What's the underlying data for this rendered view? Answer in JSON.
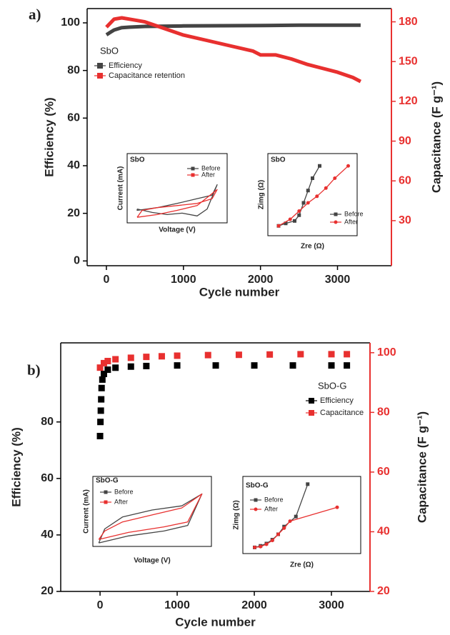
{
  "chart_data": [
    {
      "type": "line",
      "panel_label": "a)",
      "title": "SbO",
      "xlabel": "Cycle number",
      "ylabel": "Efficiency (%)",
      "y2label": "Capacitance (F g⁻¹)",
      "xlim": [
        -250,
        3700
      ],
      "ylim": [
        -2,
        106
      ],
      "y2lim": [
        -4,
        190
      ],
      "xticks": [
        0,
        1000,
        2000,
        3000
      ],
      "yticks": [
        0,
        20,
        40,
        60,
        80,
        100
      ],
      "y2ticks": [
        30,
        60,
        90,
        120,
        150,
        180
      ],
      "series": [
        {
          "name": "Efficiency",
          "color": "#444444",
          "x": [
            0,
            50,
            100,
            200,
            300,
            500,
            1000,
            1500,
            2000,
            2500,
            3000,
            3300
          ],
          "values": [
            95,
            96,
            97,
            98,
            98.2,
            98.5,
            98.7,
            98.8,
            98.9,
            99,
            99,
            99
          ]
        },
        {
          "name": "Capacitance retention",
          "color": "#e8302f",
          "axis": "y2",
          "x": [
            0,
            100,
            200,
            300,
            500,
            700,
            1000,
            1300,
            1600,
            1900,
            2000,
            2200,
            2400,
            2600,
            2800,
            3000,
            3200,
            3300
          ],
          "values": [
            176,
            182,
            183,
            182,
            180,
            176,
            170,
            166,
            162,
            158,
            155,
            155,
            152,
            148,
            145,
            142,
            138,
            135
          ]
        }
      ]
    },
    {
      "type": "line",
      "title": "SbO",
      "xlabel": "Voltage (V)",
      "ylabel": "Current (mA)",
      "xlim": [
        0,
        100
      ],
      "ylim": [
        0,
        100
      ],
      "series": [
        {
          "name": "Before",
          "color": "#444444",
          "x": [
            10,
            25,
            40,
            55,
            70,
            80,
            90,
            85,
            70,
            50,
            30,
            10,
            10
          ],
          "values": [
            20,
            15,
            12,
            14,
            10,
            20,
            55,
            40,
            35,
            28,
            22,
            18,
            20
          ]
        },
        {
          "name": "After",
          "color": "#e8302f",
          "x": [
            10,
            30,
            50,
            70,
            90,
            85,
            70,
            50,
            30,
            15,
            10
          ],
          "values": [
            8,
            12,
            18,
            25,
            48,
            35,
            28,
            25,
            22,
            18,
            8
          ]
        }
      ]
    },
    {
      "type": "line",
      "title": "SbO",
      "xlabel": "Zre (Ω)",
      "ylabel": "Zimg (Ω)",
      "xlim": [
        0,
        100
      ],
      "ylim": [
        0,
        100
      ],
      "series": [
        {
          "name": "Before",
          "color": "#444444",
          "marker": "square",
          "x": [
            12,
            20,
            30,
            35,
            40,
            45,
            50,
            58
          ],
          "values": [
            12,
            15,
            18,
            25,
            40,
            55,
            70,
            85
          ]
        },
        {
          "name": "After",
          "color": "#e8302f",
          "marker": "circle",
          "x": [
            12,
            25,
            35,
            45,
            55,
            65,
            75,
            90
          ],
          "values": [
            12,
            20,
            30,
            40,
            48,
            58,
            70,
            85
          ]
        }
      ]
    },
    {
      "type": "scatter",
      "panel_label": "b)",
      "title": "SbO-G",
      "xlabel": "Cycle number",
      "ylabel": "Efficiency (%)",
      "y2label": "Capacitance (F g⁻¹)",
      "xlim": [
        -510,
        3500
      ],
      "ylim": [
        20,
        108
      ],
      "y2lim": [
        20,
        103.3
      ],
      "xticks": [
        0,
        1000,
        2000,
        3000
      ],
      "yticks": [
        20,
        40,
        60,
        80
      ],
      "y2ticks": [
        20,
        40,
        60,
        80,
        100
      ],
      "series": [
        {
          "name": "Efficiency",
          "color": "#000000",
          "x": [
            0,
            5,
            10,
            15,
            20,
            30,
            50,
            100,
            200,
            400,
            600,
            1000,
            1500,
            2000,
            2500,
            3000,
            3200
          ],
          "values": [
            75,
            80,
            84,
            88,
            92,
            95,
            97,
            98.5,
            99.2,
            99.6,
            99.8,
            100,
            100,
            100,
            100,
            100,
            100
          ]
        },
        {
          "name": "Capacitance",
          "color": "#e8302f",
          "axis": "y2",
          "x": [
            0,
            50,
            100,
            200,
            400,
            600,
            800,
            1000,
            1400,
            1800,
            2200,
            2600,
            3000,
            3200
          ],
          "values": [
            95,
            96.5,
            97.2,
            97.8,
            98.3,
            98.6,
            98.8,
            99,
            99.2,
            99.3,
            99.4,
            99.5,
            99.5,
            99.5
          ]
        }
      ]
    },
    {
      "type": "line",
      "title": "SbO-G",
      "xlabel": "Voltage (V)",
      "ylabel": "Current (mA)",
      "xlim": [
        0,
        100
      ],
      "ylim": [
        0,
        100
      ],
      "series": [
        {
          "name": "Before",
          "color": "#444444",
          "x": [
            5,
            30,
            60,
            80,
            92,
            75,
            50,
            25,
            10,
            5
          ],
          "values": [
            5,
            15,
            22,
            30,
            75,
            58,
            52,
            42,
            25,
            5
          ]
        },
        {
          "name": "After",
          "color": "#e8302f",
          "x": [
            5,
            30,
            60,
            80,
            92,
            75,
            50,
            25,
            10,
            5
          ],
          "values": [
            10,
            20,
            28,
            35,
            75,
            55,
            45,
            35,
            22,
            10
          ]
        }
      ]
    },
    {
      "type": "line",
      "title": "SbO-G",
      "xlabel": "Zre (Ω)",
      "ylabel": "Zimg (Ω)",
      "xlim": [
        0,
        100
      ],
      "ylim": [
        0,
        100
      ],
      "series": [
        {
          "name": "Before",
          "color": "#444444",
          "marker": "square",
          "x": [
            10,
            15,
            20,
            25,
            30,
            35,
            45,
            55
          ],
          "values": [
            8,
            10,
            13,
            18,
            25,
            35,
            48,
            90
          ]
        },
        {
          "name": "After",
          "color": "#e8302f",
          "marker": "circle",
          "x": [
            10,
            15,
            20,
            25,
            30,
            35,
            40,
            80
          ],
          "values": [
            8,
            9,
            12,
            17,
            25,
            33,
            42,
            60
          ]
        }
      ]
    }
  ]
}
